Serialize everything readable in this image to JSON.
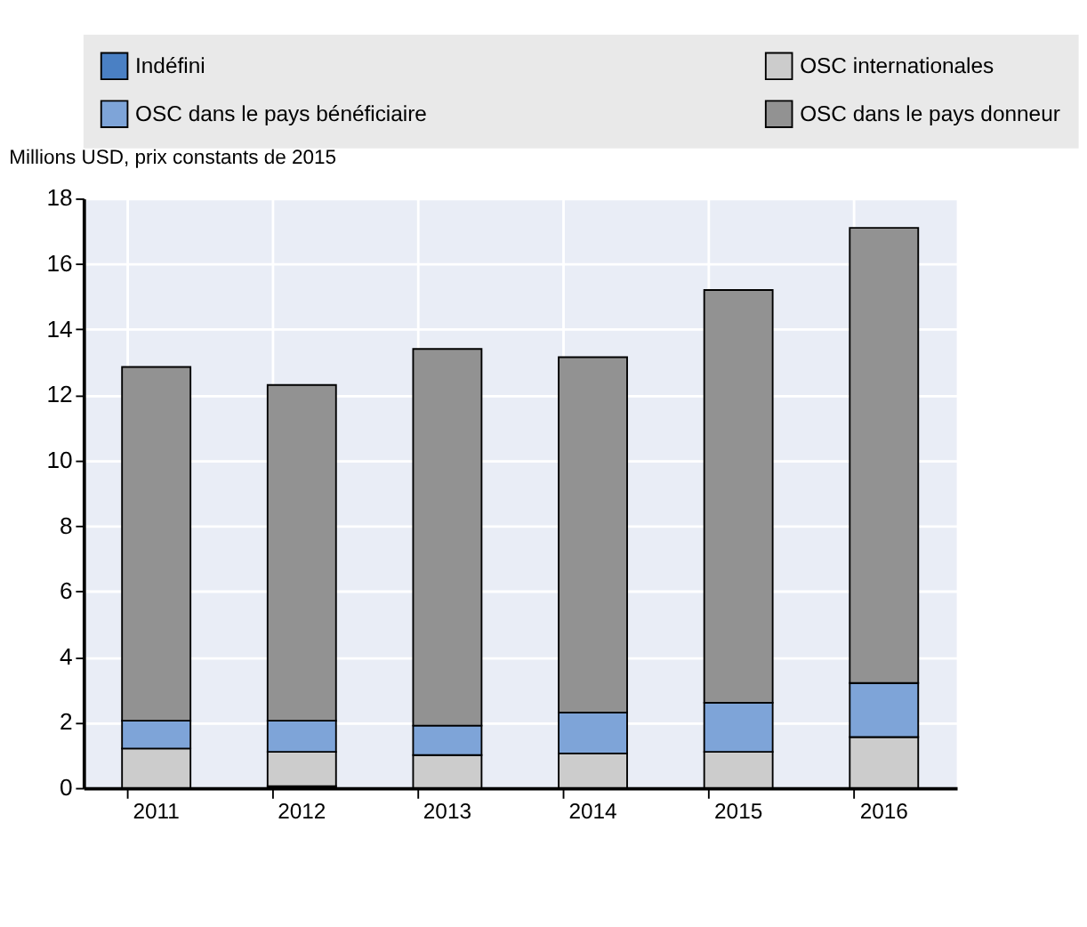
{
  "chart_data": {
    "type": "bar",
    "stacked": true,
    "ylabel": "Millions USD, prix constants de 2015",
    "categories": [
      "2011",
      "2012",
      "2013",
      "2014",
      "2015",
      "2016"
    ],
    "series": [
      {
        "name": "Indéfini",
        "color": "#4a80c4",
        "values": [
          0,
          0.05,
          0,
          0,
          0,
          0
        ]
      },
      {
        "name": "OSC internationales",
        "color": "#cccccc",
        "values": [
          1.2,
          1.05,
          1.0,
          1.05,
          1.1,
          1.55
        ]
      },
      {
        "name": "OSC dans le pays bénéficiaire",
        "color": "#7ea4d8",
        "values": [
          0.85,
          0.95,
          0.9,
          1.25,
          1.5,
          1.65
        ]
      },
      {
        "name": "OSC dans le pays donneur",
        "color": "#929292",
        "values": [
          10.8,
          10.25,
          11.5,
          10.85,
          12.6,
          13.9
        ]
      }
    ],
    "ylim": [
      0,
      18
    ],
    "yticks": [
      0,
      2,
      4,
      6,
      8,
      10,
      12,
      14,
      16,
      18
    ],
    "grid": true,
    "legend": "top"
  }
}
